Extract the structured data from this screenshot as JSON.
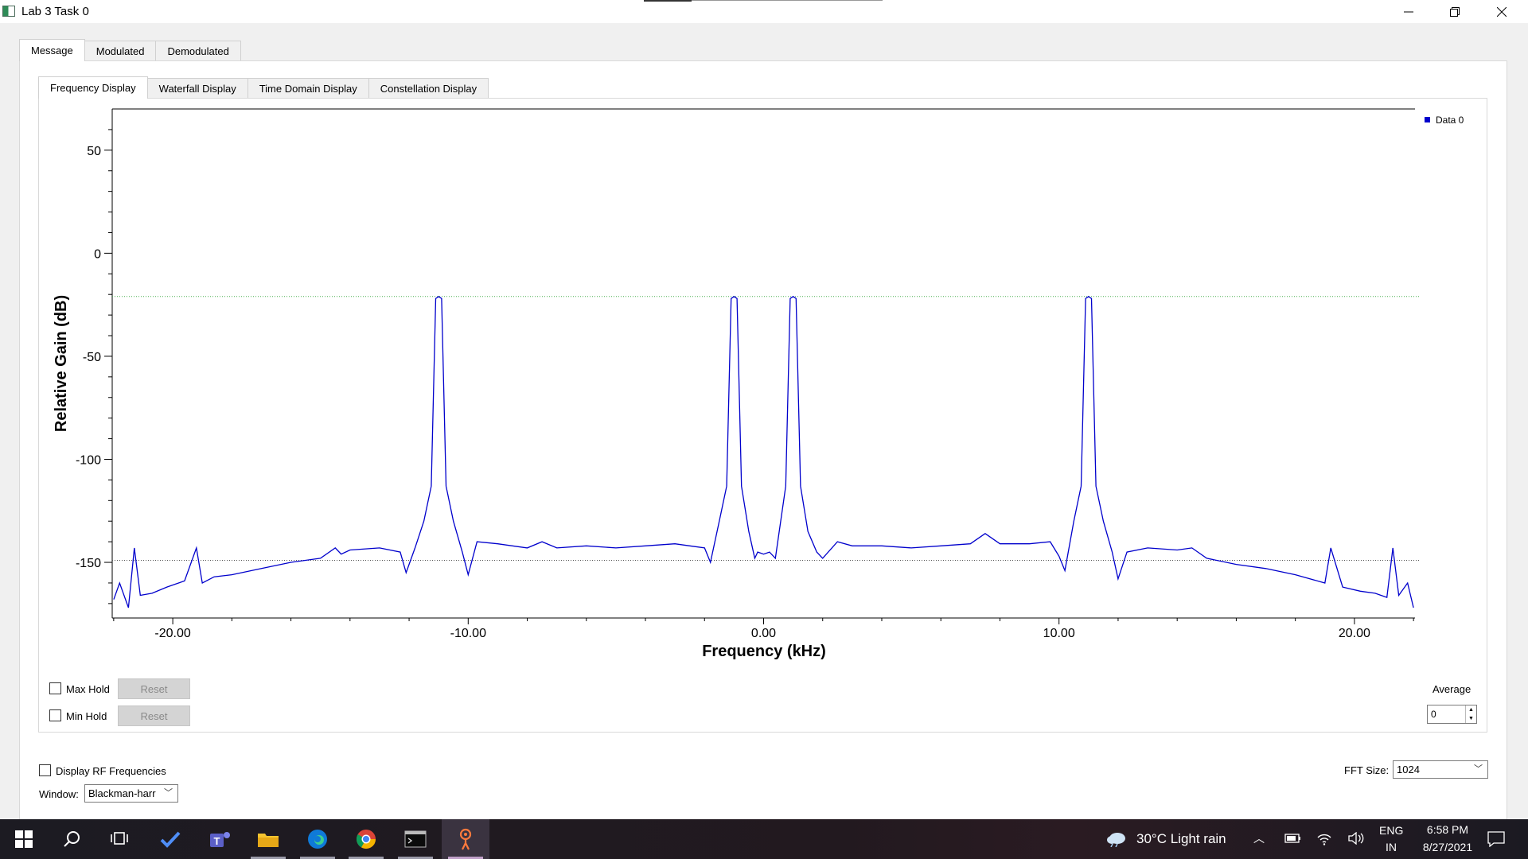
{
  "window": {
    "title": "Lab 3 Task 0"
  },
  "outer_tabs": [
    "Message",
    "Modulated",
    "Demodulated"
  ],
  "inner_tabs": [
    "Frequency Display",
    "Waterfall Display",
    "Time Domain Display",
    "Constellation Display"
  ],
  "controls": {
    "max_hold_label": "Max Hold",
    "min_hold_label": "Min Hold",
    "reset_label": "Reset",
    "average_label": "Average",
    "average_value": "0",
    "display_rf_label": "Display RF Frequencies",
    "window_label": "Window:",
    "window_value": "Blackman-harr",
    "fft_size_label": "FFT Size:",
    "fft_size_value": "1024"
  },
  "chart_data": {
    "type": "line",
    "xlabel": "Frequency (kHz)",
    "ylabel": "Relative Gain (dB)",
    "xlim": [
      -22.05,
      22.05
    ],
    "ylim": [
      -177,
      70
    ],
    "x_ticks": [
      -20,
      -10,
      0,
      10,
      20
    ],
    "x_tick_labels": [
      "-20.00",
      "-10.00",
      "0.00",
      "10.00",
      "20.00"
    ],
    "y_ticks": [
      50,
      0,
      -50,
      -100,
      -150
    ],
    "y_tick_labels": [
      "50",
      "0",
      "-50",
      "-100",
      "-150"
    ],
    "legend": {
      "placement": "top-right",
      "entries": [
        "Data 0"
      ]
    },
    "reference_lines": [
      {
        "y": -21,
        "color": "#4caf50",
        "style": "dotted"
      },
      {
        "y": -149,
        "color": "#555555",
        "style": "dotted"
      }
    ],
    "series": [
      {
        "name": "Data 0",
        "color": "#0000cc",
        "x": [
          -22.0,
          -21.8,
          -21.5,
          -21.3,
          -21.1,
          -20.7,
          -20.2,
          -19.6,
          -19.2,
          -19.0,
          -18.6,
          -18.0,
          -17.0,
          -16.0,
          -15.0,
          -14.5,
          -14.3,
          -14.0,
          -13.0,
          -12.3,
          -12.1,
          -11.8,
          -11.5,
          -11.25,
          -11.1,
          -11.0,
          -10.9,
          -10.75,
          -10.5,
          -10.2,
          -10.0,
          -9.7,
          -9.0,
          -8.0,
          -7.5,
          -7.0,
          -6.0,
          -5.0,
          -4.0,
          -3.0,
          -2.5,
          -2.0,
          -1.8,
          -1.5,
          -1.25,
          -1.1,
          -1.0,
          -0.9,
          -0.75,
          -0.5,
          -0.3,
          -0.2,
          0.0,
          0.2,
          0.4,
          0.75,
          0.9,
          1.0,
          1.1,
          1.25,
          1.5,
          1.8,
          2.0,
          2.5,
          3.0,
          4.0,
          5.0,
          6.0,
          7.0,
          7.5,
          8.0,
          9.0,
          9.7,
          10.0,
          10.2,
          10.5,
          10.75,
          10.9,
          11.0,
          11.1,
          11.25,
          11.5,
          11.8,
          12.0,
          12.3,
          13.0,
          14.0,
          14.5,
          15.0,
          16.0,
          17.0,
          18.0,
          19.0,
          19.2,
          19.6,
          20.2,
          20.7,
          21.1,
          21.3,
          21.5,
          21.8,
          22.0
        ],
        "values": [
          -168,
          -160,
          -172,
          -143,
          -166,
          -165,
          -162,
          -159,
          -143,
          -160,
          -157,
          -156,
          -153,
          -150,
          -148,
          -143,
          -146,
          -144,
          -143,
          -145,
          -155,
          -143,
          -130,
          -113,
          -22,
          -21,
          -22,
          -113,
          -130,
          -145,
          -156,
          -140,
          -141,
          -143,
          -140,
          -143,
          -142,
          -143,
          -142,
          -141,
          -142,
          -143,
          -150,
          -130,
          -113,
          -22,
          -21,
          -22,
          -113,
          -135,
          -148,
          -145,
          -146,
          -145,
          -148,
          -113,
          -22,
          -21,
          -22,
          -113,
          -135,
          -145,
          -148,
          -140,
          -142,
          -142,
          -143,
          -142,
          -141,
          -136,
          -141,
          -141,
          -140,
          -147,
          -154,
          -130,
          -113,
          -22,
          -21,
          -22,
          -113,
          -130,
          -145,
          -158,
          -145,
          -143,
          -144,
          -143,
          -148,
          -151,
          -153,
          -156,
          -160,
          -143,
          -162,
          -164,
          -165,
          -167,
          -143,
          -166,
          -160,
          -172
        ]
      }
    ]
  },
  "taskbar": {
    "weather": "30°C  Light rain",
    "lang_top": "ENG",
    "lang_bottom": "IN",
    "time": "6:58 PM",
    "date": "8/27/2021"
  }
}
